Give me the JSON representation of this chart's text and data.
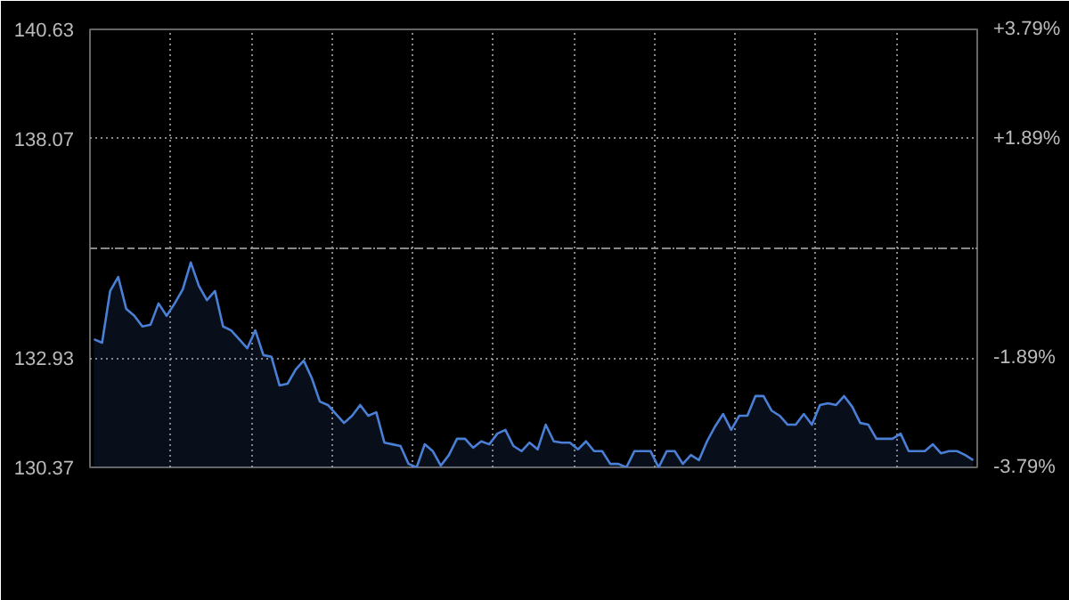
{
  "chart_data": {
    "type": "area",
    "color": "#4a7fd6",
    "categories": [
      null,
      null,
      null,
      null,
      null,
      null,
      null,
      null,
      null,
      null,
      null,
      null,
      null,
      null,
      null,
      null,
      null,
      null,
      null,
      null,
      null,
      null,
      null,
      null,
      null,
      null,
      null,
      null,
      null,
      null,
      null,
      null,
      null,
      null,
      null,
      null,
      null,
      null,
      null,
      null,
      null,
      null,
      null,
      null,
      null,
      null,
      null,
      null,
      null,
      null,
      null,
      null,
      null,
      null,
      null,
      null,
      null,
      null,
      null,
      null,
      null,
      null,
      null,
      null,
      null,
      null,
      null,
      null,
      null,
      null,
      null,
      null,
      null,
      null,
      null,
      null,
      null,
      null,
      null,
      null,
      null,
      null,
      null,
      null,
      null,
      null,
      null,
      null,
      null,
      null,
      null,
      null,
      null,
      null,
      null,
      null,
      null,
      null,
      null,
      null,
      null,
      null,
      null,
      null,
      null,
      null,
      null,
      null,
      null,
      null
    ],
    "values": [
      133.37,
      133.29,
      134.5,
      134.83,
      134.08,
      133.92,
      133.67,
      133.71,
      134.21,
      133.92,
      134.21,
      134.54,
      135.17,
      134.62,
      134.29,
      134.5,
      133.67,
      133.58,
      133.37,
      133.16,
      133.58,
      133.0,
      132.96,
      132.29,
      132.33,
      132.66,
      132.87,
      132.46,
      131.91,
      131.83,
      131.62,
      131.41,
      131.58,
      131.83,
      131.58,
      131.66,
      130.95,
      130.91,
      130.87,
      130.45,
      130.37,
      130.91,
      130.75,
      130.41,
      130.66,
      131.04,
      131.04,
      130.83,
      130.98,
      130.91,
      131.16,
      131.25,
      130.87,
      130.75,
      130.95,
      130.79,
      131.37,
      130.98,
      130.95,
      130.95,
      130.79,
      130.98,
      130.75,
      130.75,
      130.45,
      130.45,
      130.37,
      130.75,
      130.75,
      130.75,
      130.37,
      130.75,
      130.75,
      130.45,
      130.66,
      130.54,
      130.98,
      131.33,
      131.62,
      131.25,
      131.58,
      131.58,
      132.04,
      132.04,
      131.7,
      131.58,
      131.37,
      131.37,
      131.62,
      131.37,
      131.83,
      131.87,
      131.83,
      132.04,
      131.79,
      131.41,
      131.37,
      131.04,
      131.04,
      131.04,
      131.16,
      130.75,
      130.75,
      130.75,
      130.91,
      130.7,
      130.75,
      130.75,
      130.66,
      130.54
    ],
    "ylim": [
      130.37,
      140.63
    ],
    "yticks": [
      140.63,
      138.07,
      {
        "value": 135.5,
        "label": null
      },
      132.93,
      130.37
    ],
    "y2lim": [
      -3.79,
      3.79
    ],
    "y2ticks": [
      {
        "value": 3.79,
        "label": "+3.79%"
      },
      {
        "value": 1.89,
        "label": "+1.89%"
      },
      {
        "value": -1.89,
        "label": "-1.89%"
      },
      {
        "value": -3.79,
        "label": "-3.79%"
      }
    ],
    "ref_lines": [
      {
        "axis": "y",
        "value": 135.5,
        "color": "#888888",
        "line_style": "dashed"
      }
    ],
    "tick_labels": "y",
    "grid": true
  }
}
